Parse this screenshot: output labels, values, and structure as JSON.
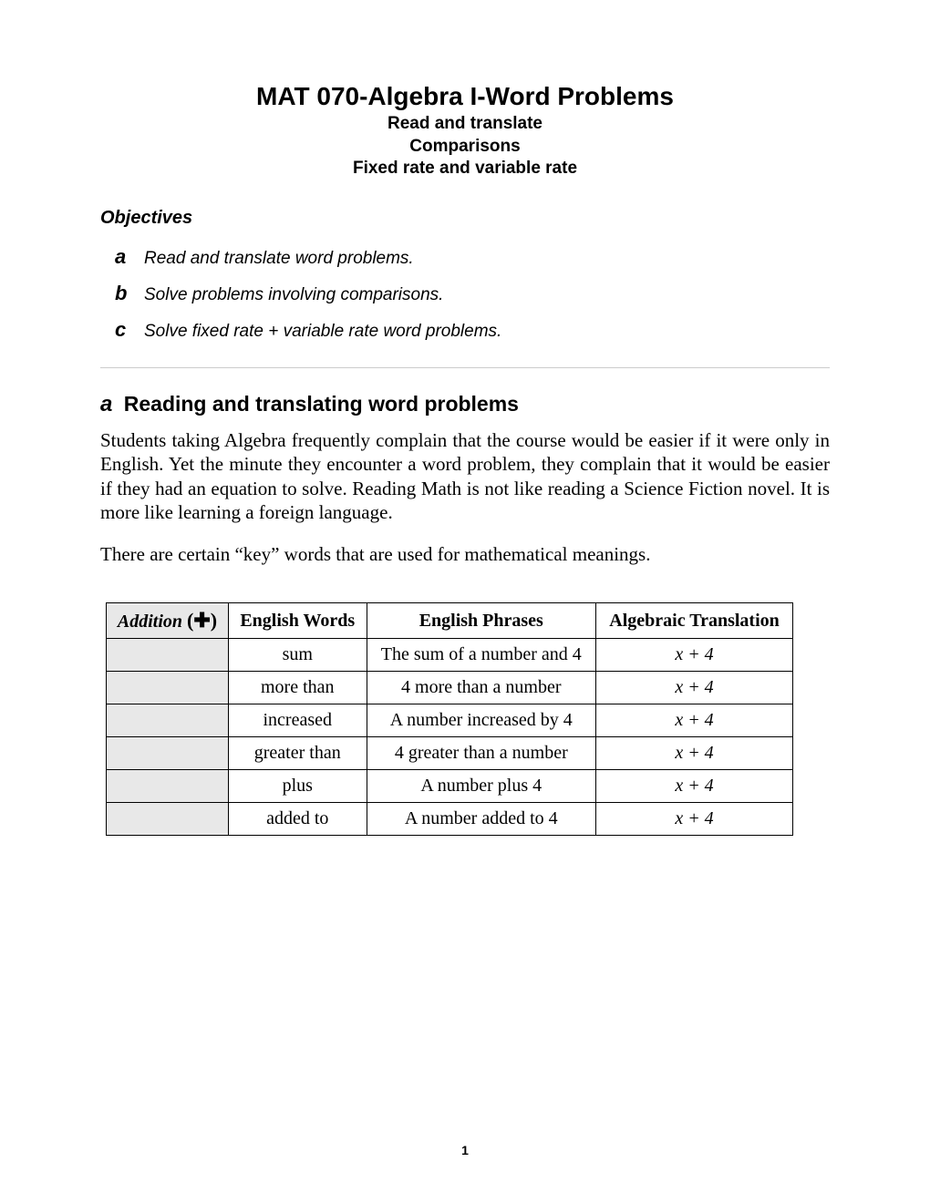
{
  "header": {
    "title": "MAT 070-Algebra I-Word Problems",
    "subtitle1": "Read and translate",
    "subtitle2": "Comparisons",
    "subtitle3": "Fixed rate and variable rate"
  },
  "objectives": {
    "heading": "Objectives",
    "items": [
      {
        "letter": "a",
        "text": "Read and translate word problems."
      },
      {
        "letter": "b",
        "text": "Solve problems involving comparisons."
      },
      {
        "letter": "c",
        "text": "Solve fixed rate + variable rate word problems."
      }
    ]
  },
  "section": {
    "letter": "a",
    "title": "Reading and translating word problems",
    "paragraph1": "Students taking Algebra frequently complain that the course would be easier if it were only in English. Yet the minute they encounter a word problem, they complain that it would be easier if they had an equation to solve. Reading Math is not like reading a Science Fiction novel. It is more like learning a foreign language.",
    "paragraph2": "There are certain “key” words that are used for mathematical meanings."
  },
  "table": {
    "headers": {
      "col1_label": "Addition",
      "col1_symbol": "(✚)",
      "col2": "English Words",
      "col3": "English Phrases",
      "col4": "Algebraic Translation"
    },
    "rows": [
      {
        "word": "sum",
        "phrase": "The sum of a number and 4",
        "translation": "x + 4"
      },
      {
        "word": "more than",
        "phrase": "4 more than a number",
        "translation": "x + 4"
      },
      {
        "word": "increased",
        "phrase": "A number increased by 4",
        "translation": "x + 4"
      },
      {
        "word": "greater than",
        "phrase": "4 greater than a number",
        "translation": "x + 4"
      },
      {
        "word": "plus",
        "phrase": "A number plus 4",
        "translation": "x + 4"
      },
      {
        "word": "added to",
        "phrase": "A number added to 4",
        "translation": "x + 4"
      }
    ]
  },
  "page_number": "1"
}
